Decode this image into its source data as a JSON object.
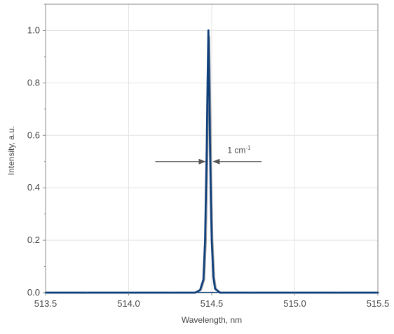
{
  "chart_data": {
    "type": "line",
    "xlabel": "Wavelength, nm",
    "ylabel": "Intensity, a.u.",
    "xlim": [
      513.5,
      515.5
    ],
    "ylim": [
      0.0,
      1.1
    ],
    "x_ticks": [
      513.5,
      514.0,
      514.5,
      515.0,
      515.5
    ],
    "x_tick_labels": [
      "513.5",
      "514.0",
      "514.5",
      "515.0",
      "515.5"
    ],
    "y_ticks": [
      0.0,
      0.2,
      0.4,
      0.6,
      0.8,
      1.0
    ],
    "y_tick_labels": [
      "0.0",
      "0.2",
      "0.4",
      "0.6",
      "0.8",
      "1.0"
    ],
    "grid": true,
    "series_color": "#0f3f7a",
    "secondary_color": "#9a9a9a",
    "arrow_color": "#555555",
    "series": [
      {
        "x": [
          513.5,
          514.0,
          514.3,
          514.4,
          514.43,
          514.45,
          514.46,
          514.47,
          514.475,
          514.48,
          514.485,
          514.49,
          514.495,
          514.5,
          514.51,
          514.52,
          514.55,
          514.6,
          515.0,
          515.5
        ],
        "y": [
          0.0,
          0.0,
          0.0,
          0.0,
          0.01,
          0.05,
          0.2,
          0.55,
          0.8,
          1.0,
          0.8,
          0.55,
          0.35,
          0.2,
          0.06,
          0.015,
          0.0,
          0.0,
          0.0,
          0.0
        ]
      }
    ],
    "annotations": [
      {
        "text": "1 cm",
        "superscript": "-1",
        "y": 0.5,
        "left_arrow_x": [
          514.16,
          514.46
        ],
        "right_arrow_x": [
          514.8,
          514.51
        ]
      }
    ]
  }
}
